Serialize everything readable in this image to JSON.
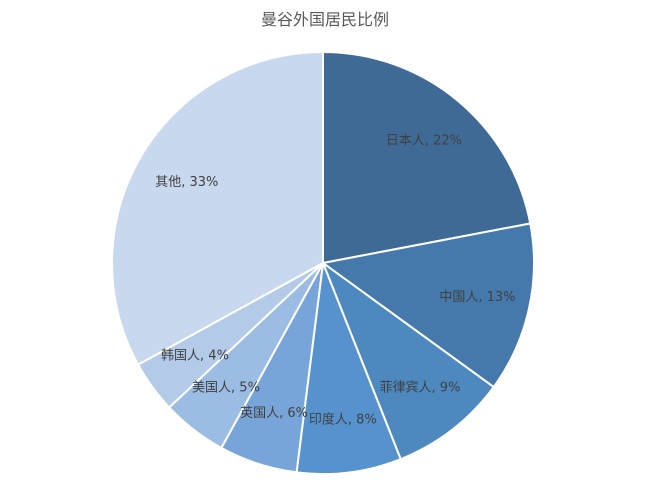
{
  "chart_data": {
    "type": "pie",
    "title": "曼谷外国居民比例",
    "categories": [
      "日本人",
      "中国人",
      "菲律宾人",
      "印度人",
      "英国人",
      "美国人",
      "韩国人",
      "其他"
    ],
    "values": [
      22,
      13,
      9,
      8,
      6,
      5,
      4,
      33
    ],
    "unit": "%",
    "labels": [
      "日本人, 22%",
      "中国人, 13%",
      "菲律宾人, 9%",
      "印度人, 8%",
      "英国人, 6%",
      "美国人, 5%",
      "韩国人, 4%",
      "其他, 33%"
    ],
    "colors": [
      "#3f6a96",
      "#4679ab",
      "#4d88bf",
      "#5692cd",
      "#78a5d9",
      "#9bbce3",
      "#b3cae8",
      "#c8d8ee"
    ],
    "legend": "none"
  }
}
